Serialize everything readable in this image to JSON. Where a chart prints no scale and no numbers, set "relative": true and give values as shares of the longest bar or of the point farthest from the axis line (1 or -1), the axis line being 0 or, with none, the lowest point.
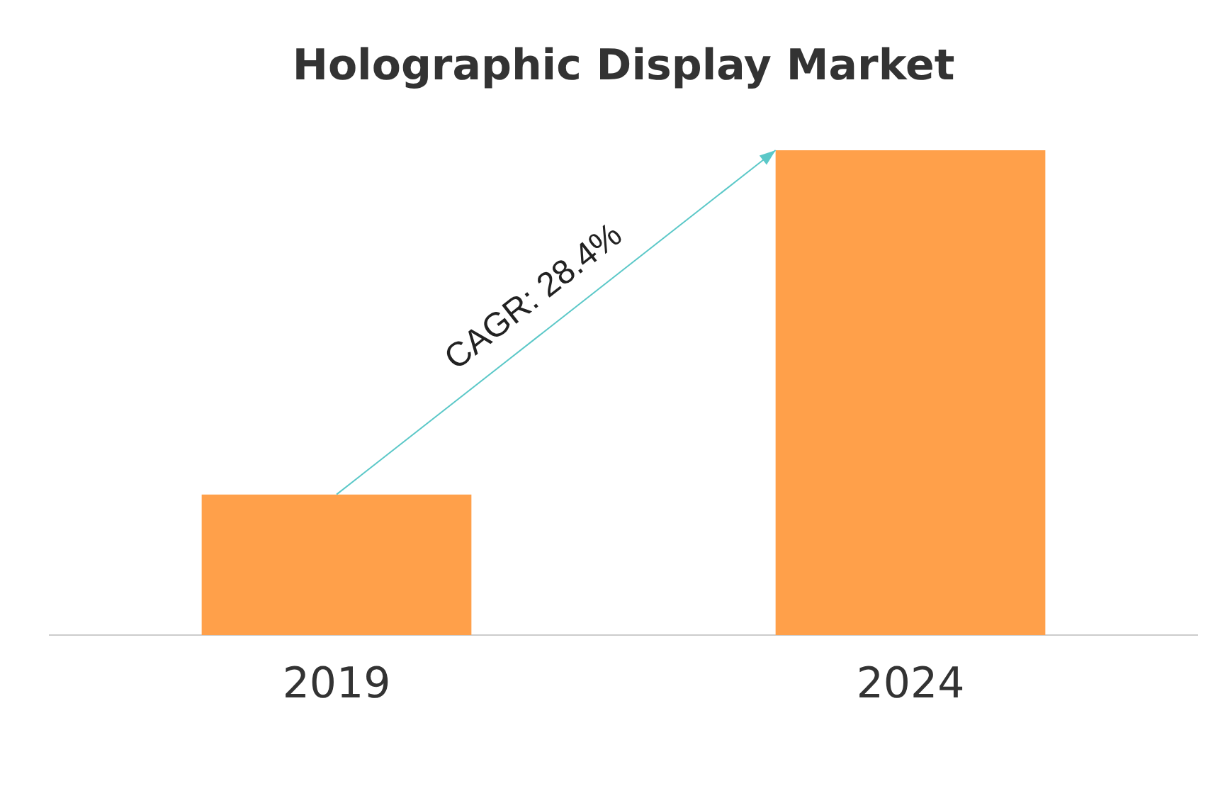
{
  "chart_data": {
    "type": "bar",
    "title": "Holographic Display Market",
    "categories": [
      "2019",
      "2024"
    ],
    "values": [
      0.29,
      1
    ],
    "color": "#ffa04a",
    "relative": true,
    "grid": false,
    "legend": false,
    "annotations": [
      "CAGR: 28.4%"
    ]
  }
}
